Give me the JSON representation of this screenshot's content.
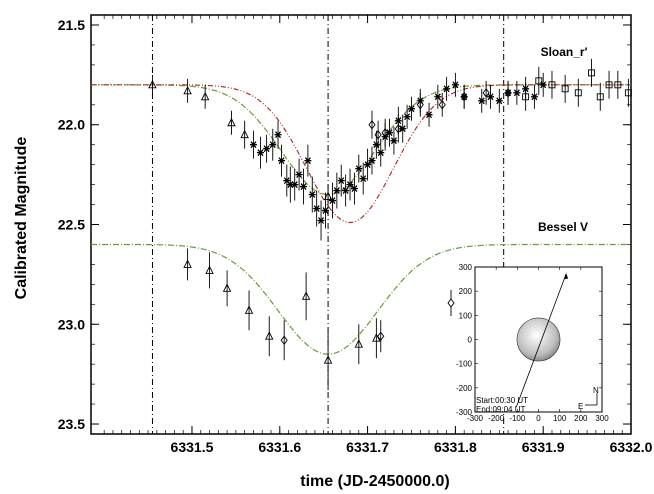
{
  "chart_data": {
    "type": "scatter",
    "xlabel": "time (JD-2450000.0)",
    "ylabel": "Calibrated Magnitude",
    "xlim": [
      6331.385,
      6332.0
    ],
    "ylim": [
      23.55,
      21.45
    ],
    "y_inverted": true,
    "x_ticks": [
      "6331.5",
      "6331.6",
      "6331.7",
      "6331.8",
      "6331.9",
      "6332.0"
    ],
    "y_ticks": [
      "21.5",
      "22.0",
      "22.5",
      "23.0",
      "23.5"
    ],
    "vertical_lines_x": [
      6331.455,
      6331.655,
      6331.855
    ],
    "series": [
      {
        "name": "Sloan_r'",
        "marker_groups": [
          {
            "marker": "triangle",
            "points": [
              [
                6331.455,
                21.8,
                0.05
              ],
              [
                6331.495,
                21.83,
                0.06
              ],
              [
                6331.515,
                21.86,
                0.06
              ],
              [
                6331.545,
                21.99,
                0.06
              ],
              [
                6331.56,
                22.05,
                0.07
              ],
              [
                6331.655,
                22.36,
                0.06
              ]
            ]
          },
          {
            "marker": "star",
            "points": [
              [
                6331.57,
                22.1,
                0.07
              ],
              [
                6331.578,
                22.14,
                0.08
              ],
              [
                6331.585,
                22.12,
                0.07
              ],
              [
                6331.592,
                22.1,
                0.08
              ],
              [
                6331.598,
                22.05,
                0.07
              ],
              [
                6331.602,
                22.18,
                0.08
              ],
              [
                6331.608,
                22.28,
                0.08
              ],
              [
                6331.612,
                22.3,
                0.09
              ],
              [
                6331.617,
                22.3,
                0.08
              ],
              [
                6331.622,
                22.25,
                0.08
              ],
              [
                6331.627,
                22.31,
                0.09
              ],
              [
                6331.632,
                22.18,
                0.08
              ],
              [
                6331.637,
                22.35,
                0.09
              ],
              [
                6331.642,
                22.42,
                0.09
              ],
              [
                6331.647,
                22.48,
                0.1
              ],
              [
                6331.652,
                22.43,
                0.09
              ],
              [
                6331.66,
                22.38,
                0.09
              ],
              [
                6331.665,
                22.33,
                0.09
              ],
              [
                6331.67,
                22.28,
                0.08
              ],
              [
                6331.675,
                22.33,
                0.08
              ],
              [
                6331.68,
                22.3,
                0.08
              ],
              [
                6331.685,
                22.32,
                0.08
              ],
              [
                6331.69,
                22.22,
                0.07
              ],
              [
                6331.695,
                22.27,
                0.08
              ],
              [
                6331.7,
                22.2,
                0.08
              ],
              [
                6331.705,
                22.18,
                0.07
              ],
              [
                6331.71,
                22.1,
                0.07
              ],
              [
                6331.715,
                22.14,
                0.07
              ],
              [
                6331.72,
                22.06,
                0.07
              ],
              [
                6331.725,
                22.04,
                0.07
              ],
              [
                6331.73,
                22.08,
                0.07
              ],
              [
                6331.735,
                21.98,
                0.07
              ],
              [
                6331.74,
                22.02,
                0.07
              ],
              [
                6331.745,
                21.96,
                0.06
              ],
              [
                6331.75,
                21.92,
                0.06
              ],
              [
                6331.76,
                21.88,
                0.06
              ],
              [
                6331.77,
                21.95,
                0.06
              ],
              [
                6331.78,
                21.86,
                0.06
              ],
              [
                6331.79,
                21.82,
                0.06
              ],
              [
                6331.8,
                21.8,
                0.06
              ],
              [
                6331.81,
                21.86,
                0.06
              ],
              [
                6331.83,
                21.88,
                0.06
              ],
              [
                6331.84,
                21.86,
                0.06
              ],
              [
                6331.85,
                21.88,
                0.06
              ],
              [
                6331.86,
                21.84,
                0.06
              ],
              [
                6331.87,
                21.84,
                0.06
              ],
              [
                6331.88,
                21.82,
                0.06
              ],
              [
                6331.89,
                21.86,
                0.06
              ],
              [
                6331.9,
                21.8,
                0.06
              ]
            ]
          },
          {
            "marker": "diamond",
            "points": [
              [
                6331.705,
                22.0,
                0.07
              ],
              [
                6331.712,
                22.05,
                0.07
              ],
              [
                6331.72,
                22.04,
                0.07
              ],
              [
                6331.735,
                22.02,
                0.07
              ],
              [
                6331.76,
                21.9,
                0.06
              ],
              [
                6331.785,
                21.9,
                0.06
              ],
              [
                6331.81,
                21.86,
                0.06
              ],
              [
                6331.835,
                21.84,
                0.06
              ],
              [
                6331.86,
                21.84,
                0.06
              ]
            ]
          },
          {
            "marker": "square",
            "points": [
              [
                6331.88,
                21.86,
                0.07
              ],
              [
                6331.895,
                21.78,
                0.07
              ],
              [
                6331.91,
                21.8,
                0.07
              ],
              [
                6331.925,
                21.82,
                0.07
              ],
              [
                6331.94,
                21.84,
                0.07
              ],
              [
                6331.955,
                21.74,
                0.07
              ],
              [
                6331.965,
                21.86,
                0.07
              ],
              [
                6331.975,
                21.8,
                0.07
              ],
              [
                6331.985,
                21.8,
                0.07
              ],
              [
                6331.997,
                21.84,
                0.07
              ]
            ]
          }
        ],
        "fit": {
          "base": 21.8,
          "depth": 0.55,
          "center": 6331.655,
          "width": 0.075,
          "color": "#6a9a3a"
        },
        "model": {
          "base": 21.8,
          "depth": 0.69,
          "center": 6331.68,
          "width": 0.07,
          "color": "#b03030"
        }
      },
      {
        "name": "Bessel V",
        "marker_groups": [
          {
            "marker": "triangle",
            "points": [
              [
                6331.495,
                22.7,
                0.08
              ],
              [
                6331.52,
                22.73,
                0.09
              ],
              [
                6331.54,
                22.82,
                0.09
              ],
              [
                6331.565,
                22.93,
                0.1
              ],
              [
                6331.588,
                23.06,
                0.1
              ],
              [
                6331.63,
                22.86,
                0.12
              ],
              [
                6331.655,
                23.18,
                0.15
              ],
              [
                6331.69,
                23.1,
                0.1
              ],
              [
                6331.71,
                23.07,
                0.1
              ]
            ]
          },
          {
            "marker": "diamond",
            "points": [
              [
                6331.605,
                23.08,
                0.1
              ],
              [
                6331.715,
                23.06,
                0.08
              ]
            ]
          }
        ],
        "fit": {
          "base": 22.6,
          "depth": 0.55,
          "center": 6331.655,
          "width": 0.08,
          "color": "#6a9a3a"
        }
      }
    ],
    "inset": {
      "xlim": [
        -300,
        300
      ],
      "ylim": [
        -300,
        300
      ],
      "ticks": [
        "-300",
        "-200",
        "-100",
        "0",
        "100",
        "200",
        "300"
      ],
      "start_label": "Start:00:30 UT",
      "end_label": "End:09:04 UT",
      "compass_n": "N",
      "compass_e": "E"
    }
  }
}
